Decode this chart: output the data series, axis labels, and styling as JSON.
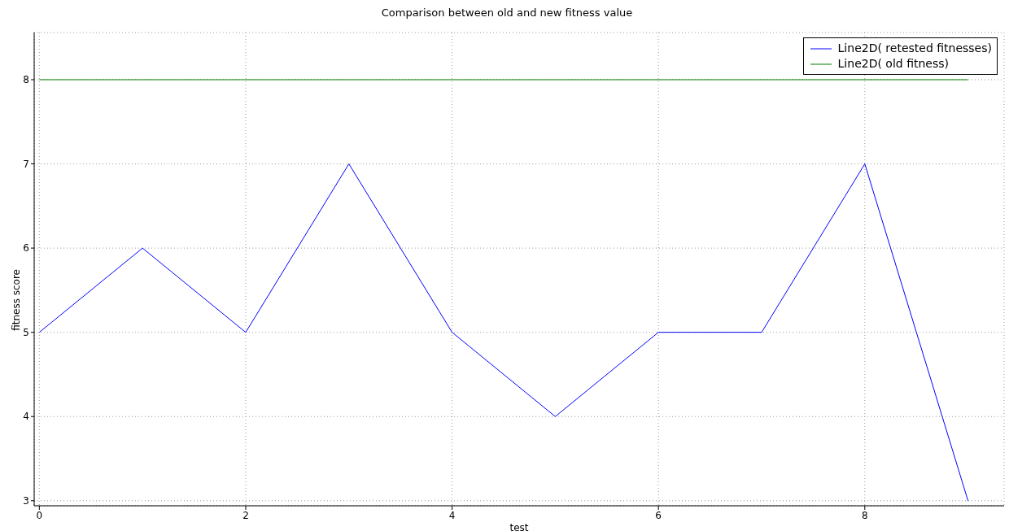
{
  "chart_data": {
    "type": "line",
    "title": "Comparison between old and new fitness value",
    "xlabel": "test",
    "ylabel": "fitness score",
    "x": [
      0,
      1,
      2,
      3,
      4,
      5,
      6,
      7,
      8,
      9
    ],
    "series": [
      {
        "name": "Line2D( retested fitnesses)",
        "color": "#0000ff",
        "values": [
          5,
          6,
          5,
          7,
          5,
          4,
          5,
          5,
          7,
          3
        ]
      },
      {
        "name": "Line2D( old fitness)",
        "color": "#008000",
        "values": [
          8,
          8,
          8,
          8,
          8,
          8,
          8,
          8,
          8,
          8
        ]
      }
    ],
    "xlim": [
      -0.05,
      9.35
    ],
    "ylim": [
      2.94,
      8.56
    ],
    "xticks": [
      0,
      2,
      4,
      6,
      8
    ],
    "yticks": [
      3,
      4,
      5,
      6,
      7,
      8
    ],
    "grid": true,
    "legend": "top right",
    "marker": "none",
    "line_style": "solid"
  }
}
